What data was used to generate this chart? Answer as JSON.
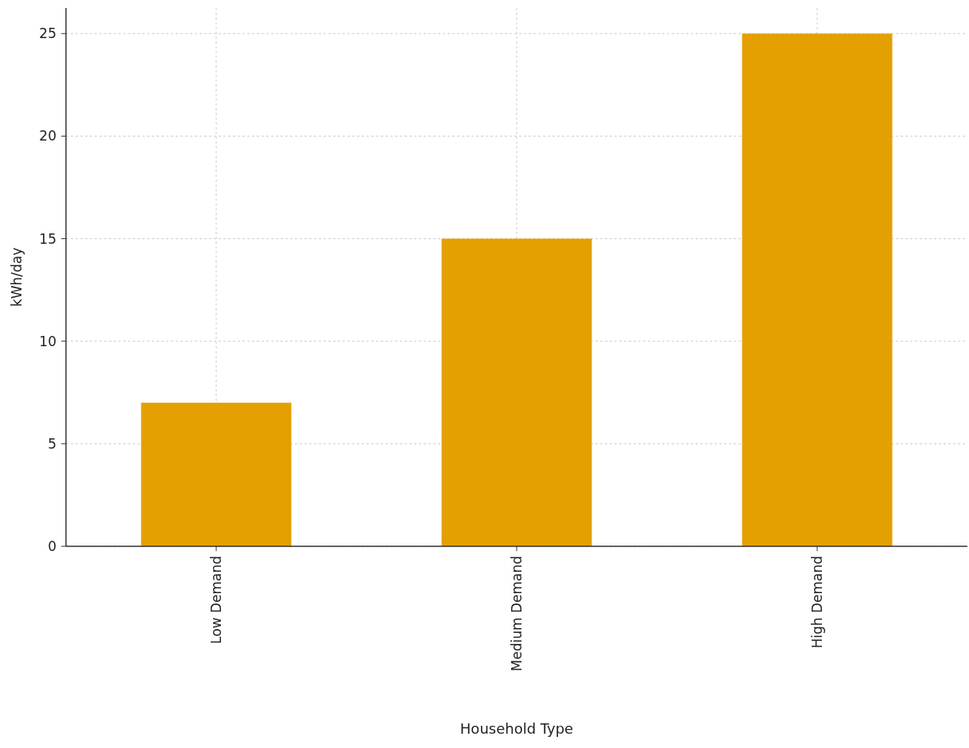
{
  "chart_data": {
    "type": "bar",
    "xlabel": "Household Type",
    "ylabel": "kWh/day",
    "categories": [
      "Low Demand",
      "Medium Demand",
      "High Demand"
    ],
    "values": [
      7,
      15,
      25
    ],
    "color": "#e3a000",
    "ylim": [
      0,
      26.25
    ],
    "yticks": [
      0,
      5,
      10,
      15,
      20,
      25
    ],
    "grid": true
  }
}
